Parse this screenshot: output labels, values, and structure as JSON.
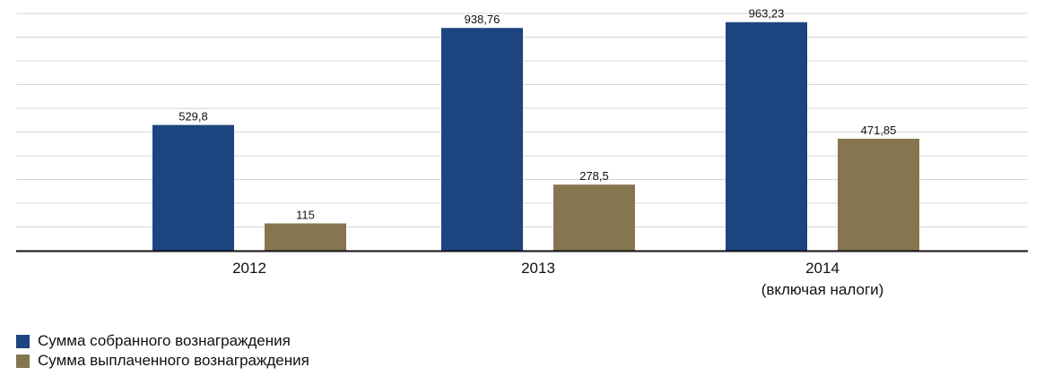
{
  "chart_data": {
    "type": "bar",
    "title": "",
    "xlabel": "",
    "ylabel": "",
    "categories": [
      "2012",
      "2013",
      "2014"
    ],
    "category_sublabels": [
      "",
      "",
      "(включая налоги)"
    ],
    "series": [
      {
        "name": "Сумма собранного вознаграждения",
        "color": "#1c4580",
        "values": [
          529.8,
          938.76,
          963.23
        ],
        "labels": [
          "529,8",
          "938,76",
          "963,23"
        ]
      },
      {
        "name": "Сумма выплаченного вознаграждения",
        "color": "#857650",
        "values": [
          115,
          278.5,
          471.85
        ],
        "labels": [
          "115",
          "278,5",
          "471,85"
        ]
      }
    ],
    "ylim": [
      0,
      1000
    ],
    "gridlines": true,
    "y_tick_labels_shown": false,
    "legend_position": "bottom-left"
  }
}
